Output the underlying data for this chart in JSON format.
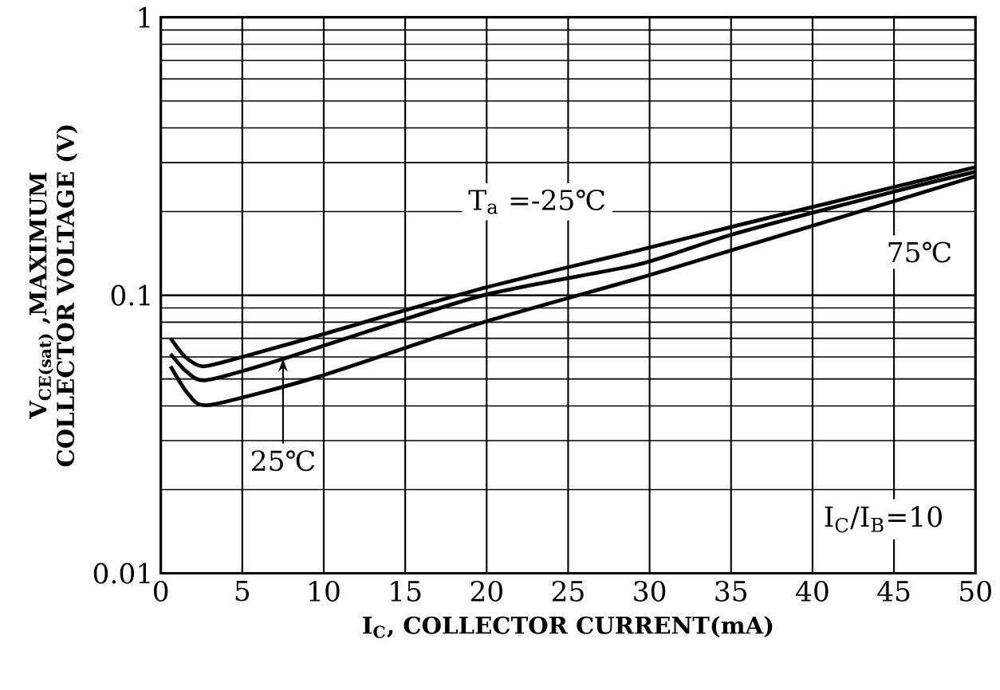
{
  "chart_data": {
    "type": "line",
    "xlabel": "I$_{C}$, COLLECTOR CURRENT(mA)",
    "ylabel": "V$_{CE(sat)}$ ,MAXIMUM COLLECTOR VOLTAGE (V)",
    "xlim": [
      0,
      50
    ],
    "xticks": [
      0,
      5,
      10,
      15,
      20,
      25,
      30,
      35,
      40,
      45,
      50
    ],
    "ylim": [
      0.01,
      1
    ],
    "yticks": [
      0.01,
      0.1,
      1
    ],
    "log": "y",
    "grid": true,
    "marker": "none",
    "line_style": "solid",
    "annotations": [
      "I$_{C}$/I$_{B}$=10"
    ],
    "series": [
      {
        "name": "T$_{a}$ =-25℃",
        "color": "#000000",
        "x": [
          0.6,
          1.5,
          2.6,
          5,
          9.7,
          19.5,
          29.3,
          35,
          45,
          50
        ],
        "values": [
          0.07,
          0.06,
          0.0555,
          0.06,
          0.0717,
          0.105,
          0.145,
          0.176,
          0.245,
          0.289
        ]
      },
      {
        "name": "25℃",
        "color": "#000000",
        "x": [
          0.6,
          1.6,
          2.8,
          7.5,
          19.5,
          29.3,
          35,
          45,
          50
        ],
        "values": [
          0.0615,
          0.053,
          0.0495,
          0.059,
          0.099,
          0.129,
          0.165,
          0.236,
          0.278
        ]
      },
      {
        "name": "75℃",
        "color": "#000000",
        "x": [
          0.6,
          1.7,
          3.0,
          9.7,
          19.5,
          29.3,
          35,
          45,
          50
        ],
        "values": [
          0.0555,
          0.044,
          0.0403,
          0.051,
          0.079,
          0.115,
          0.145,
          0.218,
          0.268
        ]
      }
    ]
  }
}
